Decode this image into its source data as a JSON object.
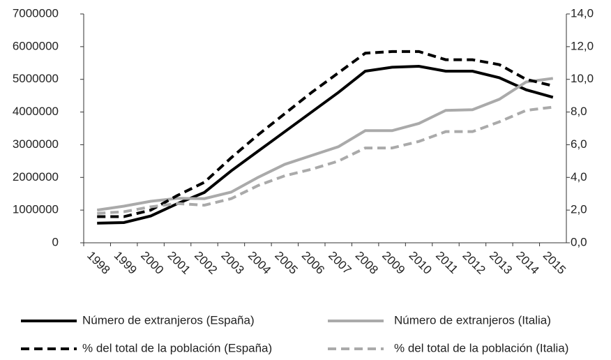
{
  "chart_data": {
    "type": "line",
    "categories": [
      "1998",
      "1999",
      "2000",
      "2001",
      "2002",
      "2003",
      "2004",
      "2005",
      "2006",
      "2007",
      "2008",
      "2009",
      "2010",
      "2011",
      "2012",
      "2013",
      "2014",
      "2015"
    ],
    "series": [
      {
        "name": "Número de extranjeros (España)",
        "color": "#000000",
        "dash": false,
        "axis": "y",
        "values": [
          600000,
          620000,
          820000,
          1200000,
          1540000,
          2200000,
          2800000,
          3400000,
          4000000,
          4600000,
          5250000,
          5370000,
          5400000,
          5250000,
          5250000,
          5050000,
          4680000,
          4450000
        ]
      },
      {
        "name": "Número de extranjeros (Italia)",
        "color": "#aaaaaa",
        "dash": false,
        "axis": "y",
        "values": [
          1000000,
          1120000,
          1270000,
          1360000,
          1350000,
          1550000,
          2000000,
          2400000,
          2670000,
          2940000,
          3430000,
          3430000,
          3650000,
          4050000,
          4070000,
          4390000,
          4920000,
          5030000
        ]
      },
      {
        "name": "% del total de la población (España)",
        "color": "#000000",
        "dash": true,
        "axis": "y2",
        "values": [
          1.6,
          1.6,
          2.0,
          2.9,
          3.7,
          5.2,
          6.6,
          7.9,
          9.2,
          10.4,
          11.6,
          11.7,
          11.7,
          11.2,
          11.2,
          10.9,
          10.0,
          9.6
        ]
      },
      {
        "name": "% del total de la población (Italia)",
        "color": "#aaaaaa",
        "dash": true,
        "axis": "y2",
        "values": [
          1.8,
          1.9,
          2.2,
          2.4,
          2.3,
          2.7,
          3.5,
          4.1,
          4.5,
          5.0,
          5.8,
          5.8,
          6.2,
          6.8,
          6.8,
          7.4,
          8.1,
          8.3
        ]
      }
    ],
    "ylim": [
      0,
      7000000
    ],
    "yticks": [
      0,
      1000000,
      2000000,
      3000000,
      4000000,
      5000000,
      6000000,
      7000000
    ],
    "y2lim": [
      0,
      14
    ],
    "y2ticks": [
      {
        "value": 0,
        "label": "0,0"
      },
      {
        "value": 2,
        "label": "2,0"
      },
      {
        "value": 4,
        "label": "4,0"
      },
      {
        "value": 6,
        "label": "6,0"
      },
      {
        "value": 8,
        "label": "8,0"
      },
      {
        "value": 10,
        "label": "10,0"
      },
      {
        "value": 12,
        "label": "12,0"
      },
      {
        "value": 14,
        "label": "14,0"
      }
    ],
    "legend": "bottom"
  }
}
